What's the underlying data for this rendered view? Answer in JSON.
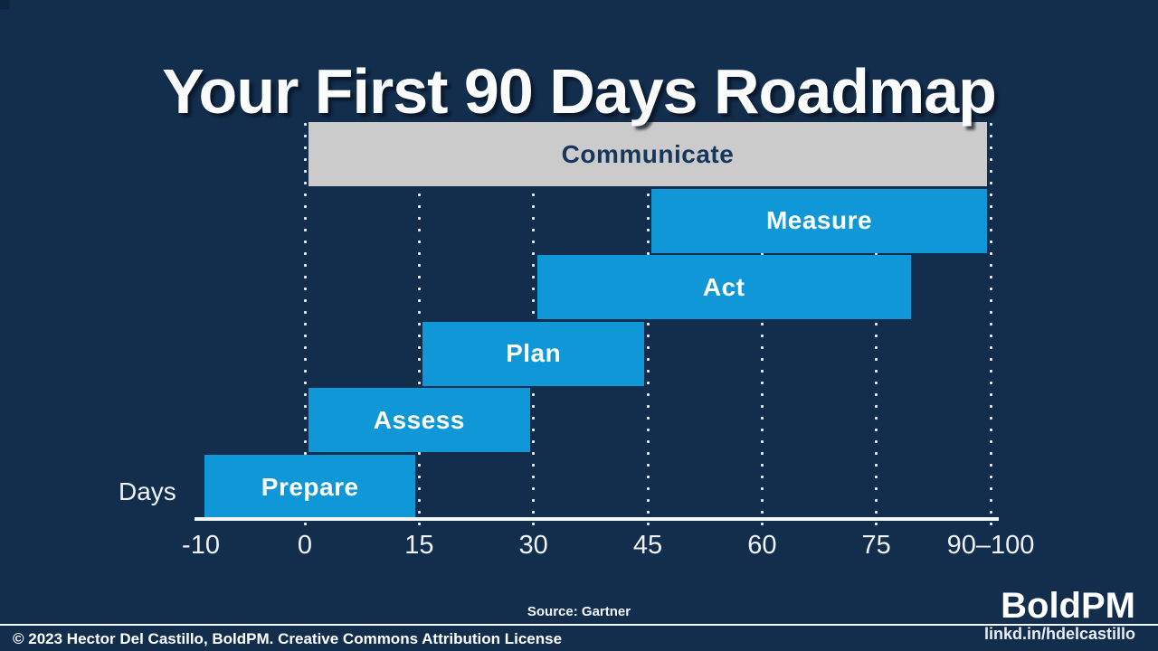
{
  "slide": {
    "title": "Your First 90 Days Roadmap",
    "colors": {
      "background": "#132e4d",
      "bar_blue": "#0f97d7",
      "bar_gray": "#cbcbcb",
      "text_light": "#ffffff",
      "text_dark_navy": "#17365c",
      "gridline_dots": "#e9eff6"
    }
  },
  "chart_data": {
    "type": "bar",
    "variant": "gantt",
    "orientation": "horizontal",
    "title": "Your First 90 Days Roadmap",
    "axis_label": "Days",
    "xlim": [
      -10,
      100
    ],
    "x_ticks": [
      {
        "label": "-10",
        "value": -10,
        "gridline": false
      },
      {
        "label": "0",
        "value": 0,
        "gridline": true
      },
      {
        "label": "15",
        "value": 15,
        "gridline": true
      },
      {
        "label": "30",
        "value": 30,
        "gridline": true
      },
      {
        "label": "45",
        "value": 45,
        "gridline": true
      },
      {
        "label": "60",
        "value": 60,
        "gridline": true
      },
      {
        "label": "75",
        "value": 75,
        "gridline": true
      },
      {
        "label": "90–100",
        "value": 90,
        "gridline": true
      }
    ],
    "grid": "dotted vertical gridlines at ticks 0 through 90",
    "legend": "none",
    "tasks": [
      {
        "name": "Communicate",
        "start_day": 0,
        "end_day": 100,
        "fill": "#cbcbcb",
        "text_color": "#17365c"
      },
      {
        "name": "Measure",
        "start_day": 45,
        "end_day": 100,
        "fill": "#0f97d7",
        "text_color": "#ffffff"
      },
      {
        "name": "Act",
        "start_day": 30,
        "end_day": 80,
        "fill": "#0f97d7",
        "text_color": "#ffffff"
      },
      {
        "name": "Plan",
        "start_day": 15,
        "end_day": 45,
        "fill": "#0f97d7",
        "text_color": "#ffffff"
      },
      {
        "name": "Assess",
        "start_day": 0,
        "end_day": 30,
        "fill": "#0f97d7",
        "text_color": "#ffffff"
      },
      {
        "name": "Prepare",
        "start_day": -10,
        "end_day": 15,
        "fill": "#0f97d7",
        "text_color": "#ffffff"
      }
    ],
    "source_note": "Source: Gartner"
  },
  "footer": {
    "source": "Source: Gartner",
    "copyright": "© 2023 Hector Del Castillo, BoldPM. Creative Commons Attribution License",
    "brand": "BoldPM",
    "brand_link": "linkd.in/hdelcastillo"
  }
}
